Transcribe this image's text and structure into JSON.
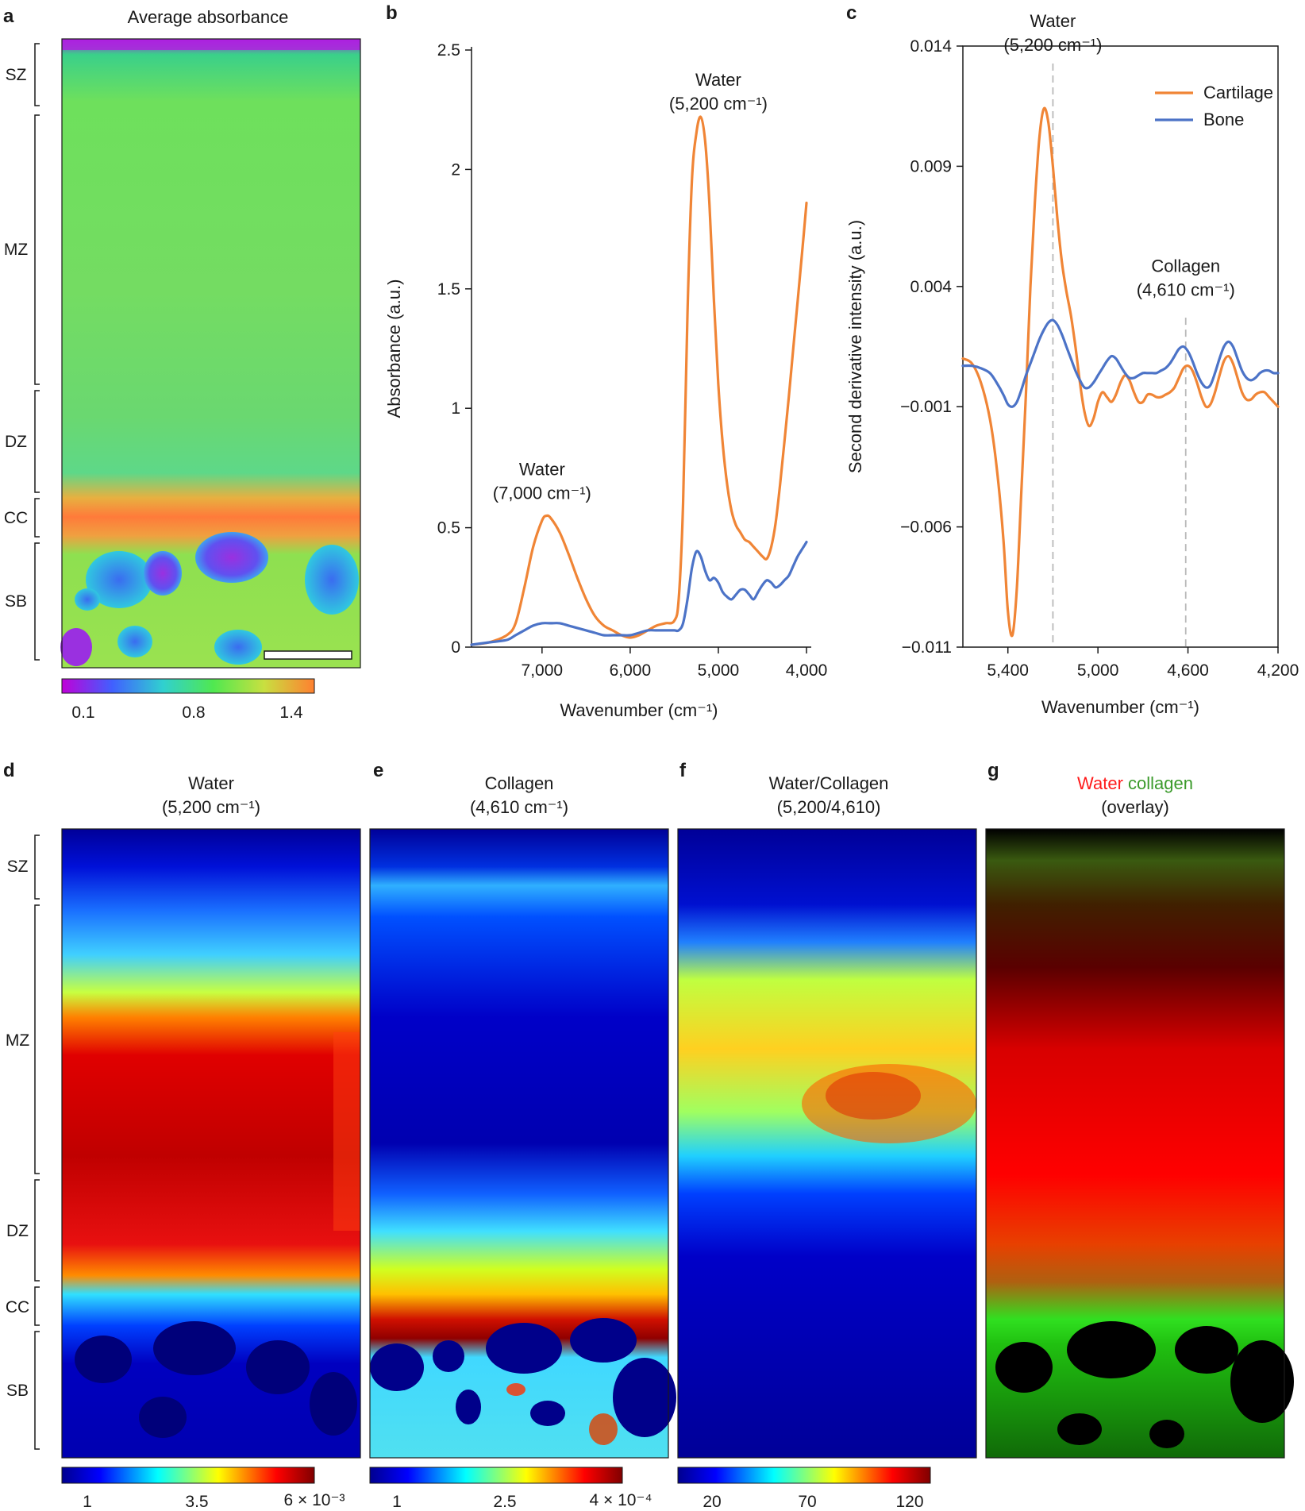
{
  "figure": {
    "panels": {
      "a": {
        "letter": "a",
        "title": "Average absorbance",
        "zones": [
          "SZ",
          "MZ",
          "DZ",
          "CC",
          "SB"
        ],
        "colorbar": {
          "ticks": [
            "0.1",
            "0.8",
            "1.4"
          ],
          "colors": [
            "#c000d8",
            "#4060ff",
            "#30d0d0",
            "#50e850",
            "#c8e040",
            "#ff8030"
          ]
        }
      },
      "d": {
        "letter": "d",
        "title": "Water",
        "subtitle": "(5,200 cm⁻¹)",
        "zones": [
          "SZ",
          "MZ",
          "DZ",
          "CC",
          "SB"
        ],
        "colorbar": {
          "ticks": [
            "1",
            "3.5",
            "6 × 10⁻³"
          ]
        }
      },
      "e": {
        "letter": "e",
        "title": "Collagen",
        "subtitle": "(4,610 cm⁻¹)",
        "colorbar": {
          "ticks": [
            "1",
            "2.5",
            "4 × 10⁻⁴"
          ]
        }
      },
      "f": {
        "letter": "f",
        "title": "Water/Collagen",
        "subtitle": "(5,200/4,610)",
        "colorbar": {
          "ticks": [
            "20",
            "70",
            "120"
          ]
        }
      },
      "g": {
        "letter": "g",
        "title_water": "Water",
        "title_collagen": "collagen",
        "subtitle": "(overlay)"
      }
    },
    "jet_colors": [
      "#00008f",
      "#0000ff",
      "#00ffff",
      "#ffff00",
      "#ff0000",
      "#800000"
    ]
  },
  "chart_data": [
    {
      "id": "b",
      "letter": "b",
      "type": "line",
      "xlabel": "Wavenumber (cm⁻¹)",
      "ylabel": "Absorbance (a.u.)",
      "xlim": [
        7800,
        4000
      ],
      "ylim": [
        0,
        2.5
      ],
      "xticks": [
        7000,
        6000,
        5000,
        4000
      ],
      "xtick_labels": [
        "7,000",
        "6,000",
        "5,000",
        "4,000"
      ],
      "yticks": [
        0,
        0.5,
        1,
        1.5,
        2,
        2.5
      ],
      "ytick_labels": [
        "0",
        "0.5",
        "1",
        "1.5",
        "2",
        "2.5"
      ],
      "annotations": [
        {
          "line1": "Water",
          "line2": "(7,000 cm⁻¹)",
          "x": 7000,
          "y": 0.72
        },
        {
          "line1": "Water",
          "line2": "(5,200 cm⁻¹)",
          "x": 5000,
          "y": 2.35
        }
      ],
      "series": [
        {
          "name": "Cartilage",
          "color": "#f08536",
          "x": [
            7800,
            7600,
            7400,
            7300,
            7200,
            7100,
            7000,
            6950,
            6900,
            6800,
            6700,
            6600,
            6500,
            6400,
            6300,
            6200,
            6100,
            6000,
            5900,
            5800,
            5700,
            5600,
            5500,
            5450,
            5400,
            5350,
            5300,
            5250,
            5200,
            5150,
            5100,
            5050,
            5000,
            4950,
            4900,
            4850,
            4800,
            4750,
            4700,
            4650,
            4600,
            4550,
            4500,
            4450,
            4400,
            4350,
            4300,
            4250,
            4200,
            4150,
            4100,
            4050,
            4000
          ],
          "y": [
            0.01,
            0.02,
            0.05,
            0.1,
            0.25,
            0.42,
            0.53,
            0.55,
            0.54,
            0.48,
            0.39,
            0.29,
            0.2,
            0.13,
            0.09,
            0.07,
            0.05,
            0.04,
            0.05,
            0.07,
            0.09,
            0.1,
            0.11,
            0.2,
            0.6,
            1.4,
            1.95,
            2.15,
            2.22,
            2.12,
            1.85,
            1.45,
            1.1,
            0.85,
            0.68,
            0.57,
            0.51,
            0.48,
            0.45,
            0.44,
            0.42,
            0.4,
            0.38,
            0.37,
            0.42,
            0.52,
            0.68,
            0.86,
            1.05,
            1.25,
            1.45,
            1.65,
            1.86
          ]
        },
        {
          "name": "Bone",
          "color": "#4c73c7",
          "x": [
            7800,
            7600,
            7400,
            7300,
            7200,
            7100,
            7000,
            6900,
            6800,
            6700,
            6600,
            6500,
            6400,
            6300,
            6200,
            6100,
            6000,
            5900,
            5800,
            5700,
            5600,
            5500,
            5450,
            5400,
            5350,
            5300,
            5250,
            5200,
            5150,
            5100,
            5050,
            5000,
            4950,
            4900,
            4850,
            4800,
            4750,
            4700,
            4650,
            4600,
            4550,
            4500,
            4450,
            4400,
            4350,
            4300,
            4250,
            4200,
            4150,
            4100,
            4050,
            4000
          ],
          "y": [
            0.01,
            0.02,
            0.03,
            0.05,
            0.07,
            0.09,
            0.1,
            0.1,
            0.1,
            0.09,
            0.08,
            0.07,
            0.06,
            0.05,
            0.05,
            0.05,
            0.05,
            0.06,
            0.07,
            0.07,
            0.07,
            0.07,
            0.07,
            0.1,
            0.2,
            0.33,
            0.4,
            0.38,
            0.32,
            0.28,
            0.29,
            0.27,
            0.23,
            0.21,
            0.2,
            0.22,
            0.24,
            0.24,
            0.22,
            0.2,
            0.23,
            0.26,
            0.28,
            0.27,
            0.25,
            0.26,
            0.28,
            0.3,
            0.34,
            0.38,
            0.41,
            0.44
          ]
        }
      ]
    },
    {
      "id": "c",
      "letter": "c",
      "type": "line",
      "xlabel": "Wavenumber (cm⁻¹)",
      "ylabel": "Second derivative intensity (a.u.)",
      "xlim": [
        5600,
        4200
      ],
      "ylim": [
        -0.011,
        0.014
      ],
      "xticks": [
        5400,
        5000,
        4600,
        4200
      ],
      "xtick_labels": [
        "5,400",
        "5,000",
        "4,600",
        "4,200"
      ],
      "yticks": [
        0.014,
        0.009,
        0.004,
        -0.001,
        -0.006,
        -0.011
      ],
      "ytick_labels": [
        "0.014",
        "0.009",
        "0.004",
        "−0.001",
        "−0.006",
        "−0.011"
      ],
      "legend": [
        "Cartilage",
        "Bone"
      ],
      "legend_position": "top-right",
      "vlines": [
        5200,
        4610
      ],
      "annotations": [
        {
          "line1": "Water",
          "line2": "(5,200 cm⁻¹)",
          "x": 5200,
          "y": 0.0148
        },
        {
          "line1": "Collagen",
          "line2": "(4,610 cm⁻¹)",
          "x": 4610,
          "y": 0.0046
        }
      ],
      "series": [
        {
          "name": "Cartilage",
          "color": "#f08536",
          "x": [
            5600,
            5560,
            5520,
            5480,
            5450,
            5420,
            5400,
            5380,
            5360,
            5340,
            5320,
            5300,
            5280,
            5260,
            5240,
            5220,
            5200,
            5180,
            5160,
            5140,
            5120,
            5100,
            5080,
            5060,
            5040,
            5020,
            5000,
            4980,
            4960,
            4940,
            4920,
            4900,
            4880,
            4860,
            4840,
            4820,
            4800,
            4780,
            4760,
            4740,
            4720,
            4700,
            4680,
            4660,
            4640,
            4620,
            4600,
            4580,
            4560,
            4540,
            4520,
            4500,
            4480,
            4460,
            4440,
            4420,
            4400,
            4380,
            4360,
            4340,
            4320,
            4300,
            4280,
            4260,
            4240,
            4220,
            4200
          ],
          "y": [
            0.001,
            0.0008,
            0.0,
            -0.0015,
            -0.0035,
            -0.0065,
            -0.0095,
            -0.0105,
            -0.0085,
            -0.0045,
            -0.0005,
            0.004,
            0.0075,
            0.0102,
            0.0114,
            0.0108,
            0.009,
            0.0068,
            0.005,
            0.0038,
            0.0028,
            0.0015,
            0.0,
            -0.0012,
            -0.0018,
            -0.0015,
            -0.0008,
            -0.0004,
            -0.0006,
            -0.0008,
            -0.0005,
            0.0,
            0.0003,
            0.0001,
            -0.0004,
            -0.0008,
            -0.0008,
            -0.0005,
            -0.0005,
            -0.0006,
            -0.0006,
            -0.0005,
            -0.0004,
            -0.0002,
            0.0002,
            0.0006,
            0.0007,
            0.0005,
            0.0,
            -0.0006,
            -0.001,
            -0.0009,
            -0.0004,
            0.0003,
            0.0009,
            0.0011,
            0.0008,
            0.0002,
            -0.0004,
            -0.0007,
            -0.0007,
            -0.0005,
            -0.0004,
            -0.0004,
            -0.0006,
            -0.0008,
            -0.001
          ]
        },
        {
          "name": "Bone",
          "color": "#4c73c7",
          "x": [
            5600,
            5560,
            5520,
            5480,
            5450,
            5420,
            5400,
            5380,
            5360,
            5340,
            5320,
            5300,
            5280,
            5260,
            5240,
            5220,
            5200,
            5180,
            5160,
            5140,
            5120,
            5100,
            5080,
            5060,
            5040,
            5020,
            5000,
            4980,
            4960,
            4940,
            4920,
            4900,
            4880,
            4860,
            4840,
            4820,
            4800,
            4780,
            4760,
            4740,
            4720,
            4700,
            4680,
            4660,
            4640,
            4620,
            4600,
            4580,
            4560,
            4540,
            4520,
            4500,
            4480,
            4460,
            4440,
            4420,
            4400,
            4380,
            4360,
            4340,
            4320,
            4300,
            4280,
            4260,
            4240,
            4220,
            4200
          ],
          "y": [
            0.0007,
            0.0007,
            0.0006,
            0.0004,
            0.0,
            -0.0005,
            -0.0009,
            -0.001,
            -0.0008,
            -0.0003,
            0.0003,
            0.0008,
            0.0013,
            0.0018,
            0.0022,
            0.0025,
            0.0026,
            0.0024,
            0.002,
            0.0015,
            0.001,
            0.0005,
            0.0001,
            -0.0002,
            -0.0002,
            0.0,
            0.0003,
            0.0006,
            0.0009,
            0.0011,
            0.001,
            0.0007,
            0.0004,
            0.0002,
            0.0002,
            0.0003,
            0.0004,
            0.0004,
            0.0004,
            0.0004,
            0.0005,
            0.0006,
            0.0008,
            0.0011,
            0.0014,
            0.0015,
            0.0013,
            0.0009,
            0.0004,
            0.0,
            -0.0002,
            -0.0001,
            0.0004,
            0.001,
            0.0015,
            0.0017,
            0.0015,
            0.001,
            0.0005,
            0.0002,
            0.0001,
            0.0002,
            0.0004,
            0.0005,
            0.0005,
            0.0004,
            0.0004
          ]
        }
      ]
    }
  ]
}
